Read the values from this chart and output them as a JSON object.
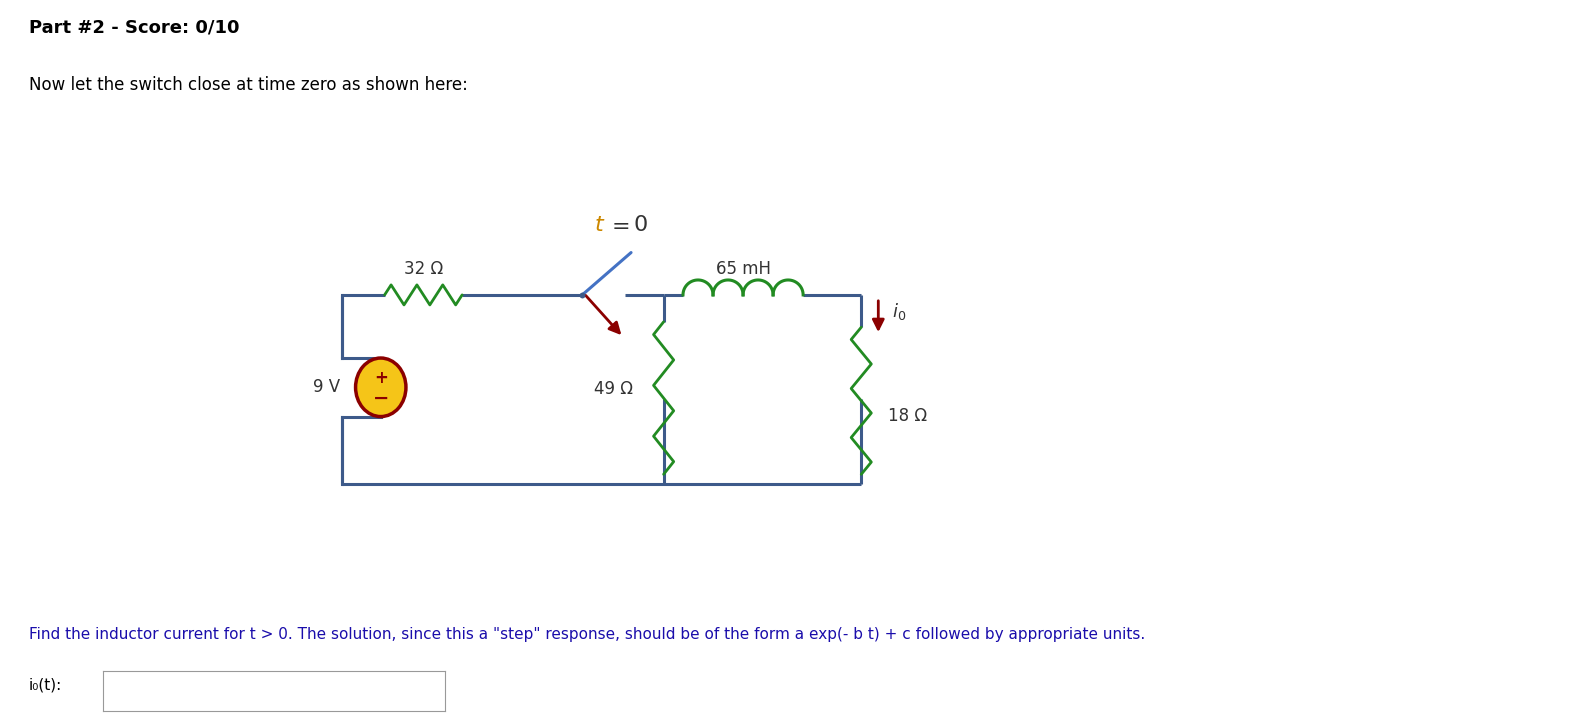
{
  "title": "Part #2 - Score: 0/10",
  "subtitle": "Now let the switch close at time zero as shown here:",
  "bg_color": "#ffffff",
  "wire_color": "#3d5a8a",
  "resistor_color": "#228B22",
  "inductor_color": "#228B22",
  "arrow_color": "#8b0000",
  "source_body_color": "#f5c518",
  "source_border_color": "#8b0000",
  "label_32": "32 Ω",
  "label_65": "65 mH",
  "label_49": "49 Ω",
  "label_18": "18 Ω",
  "label_9v": "9 V",
  "footer_text": "Find the inductor current for t > 0. The solution, since this a \"step\" response, should be of the form a exp(- b t) + c followed by appropriate units.",
  "input_label": "i₀(t):",
  "wire_lw": 2.2
}
